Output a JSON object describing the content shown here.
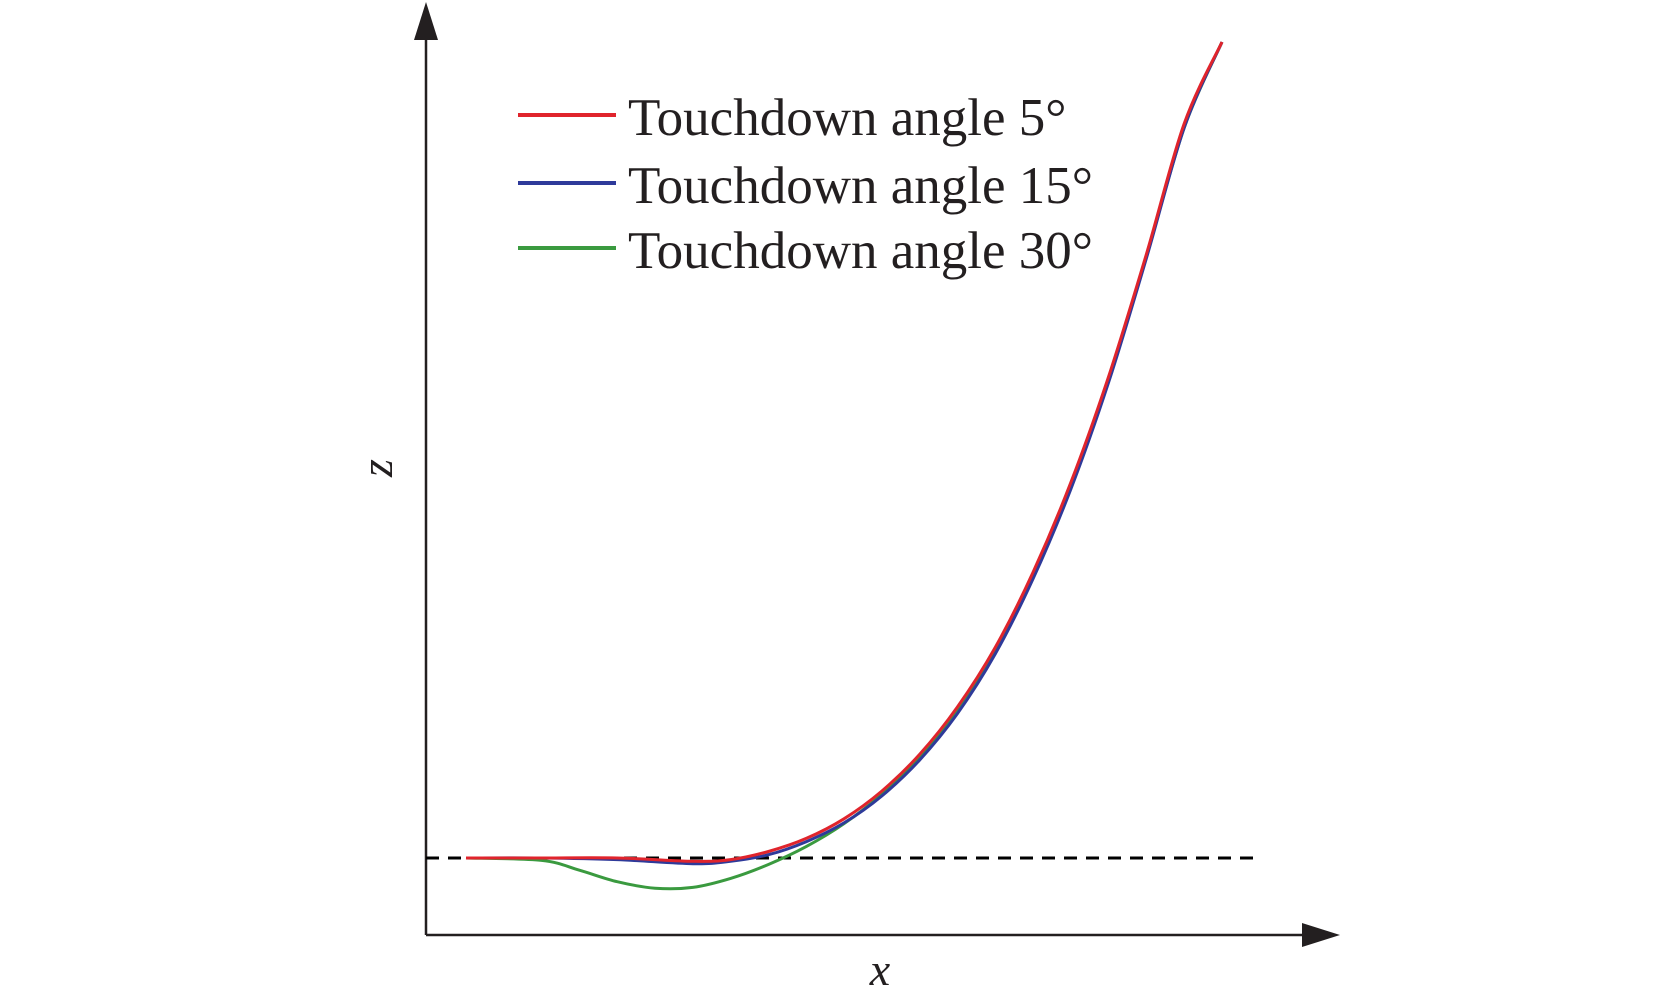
{
  "chart_data": {
    "type": "line",
    "title": "",
    "xlabel": "x",
    "ylabel": "z",
    "xlim": [
      0,
      1
    ],
    "ylim": [
      -0.09,
      1.0
    ],
    "grid": false,
    "legend_position": "top-left",
    "reference_line": {
      "y": 0,
      "style": "dashed",
      "color": "#000000"
    },
    "series": [
      {
        "name": "Touchdown angle 5°",
        "color": "#e0242c",
        "points": [
          [
            0.0,
            0.0
          ],
          [
            0.1,
            0.0
          ],
          [
            0.2,
            0.0
          ],
          [
            0.3,
            -0.004
          ],
          [
            0.35,
            -0.002
          ],
          [
            0.4,
            0.008
          ],
          [
            0.45,
            0.024
          ],
          [
            0.5,
            0.048
          ],
          [
            0.55,
            0.082
          ],
          [
            0.6,
            0.127
          ],
          [
            0.65,
            0.185
          ],
          [
            0.7,
            0.258
          ],
          [
            0.75,
            0.35
          ],
          [
            0.8,
            0.46
          ],
          [
            0.85,
            0.59
          ],
          [
            0.9,
            0.74
          ],
          [
            0.95,
            0.9
          ],
          [
            1.0,
            1.0
          ]
        ]
      },
      {
        "name": "Touchdown angle 15°",
        "color": "#2e3a9a",
        "points": [
          [
            0.0,
            0.0
          ],
          [
            0.1,
            0.0
          ],
          [
            0.2,
            -0.002
          ],
          [
            0.3,
            -0.007
          ],
          [
            0.35,
            -0.004
          ],
          [
            0.4,
            0.004
          ],
          [
            0.45,
            0.02
          ],
          [
            0.5,
            0.043
          ],
          [
            0.55,
            0.076
          ],
          [
            0.6,
            0.12
          ],
          [
            0.65,
            0.177
          ],
          [
            0.7,
            0.25
          ],
          [
            0.75,
            0.342
          ],
          [
            0.8,
            0.452
          ],
          [
            0.85,
            0.583
          ],
          [
            0.9,
            0.735
          ],
          [
            0.95,
            0.895
          ],
          [
            1.0,
            1.0
          ]
        ]
      },
      {
        "name": "Touchdown angle 30°",
        "color": "#3a9a3f",
        "points": [
          [
            0.0,
            0.0
          ],
          [
            0.1,
            -0.003
          ],
          [
            0.15,
            -0.015
          ],
          [
            0.2,
            -0.029
          ],
          [
            0.25,
            -0.037
          ],
          [
            0.3,
            -0.036
          ],
          [
            0.35,
            -0.025
          ],
          [
            0.4,
            -0.008
          ],
          [
            0.45,
            0.014
          ],
          [
            0.5,
            0.042
          ],
          [
            0.55,
            0.078
          ],
          [
            0.6,
            0.124
          ],
          [
            0.65,
            0.183
          ],
          [
            0.7,
            0.256
          ],
          [
            0.75,
            0.347
          ],
          [
            0.8,
            0.456
          ],
          [
            0.85,
            0.585
          ],
          [
            0.9,
            0.737
          ],
          [
            0.95,
            0.895
          ],
          [
            1.0,
            1.0
          ]
        ]
      }
    ]
  }
}
